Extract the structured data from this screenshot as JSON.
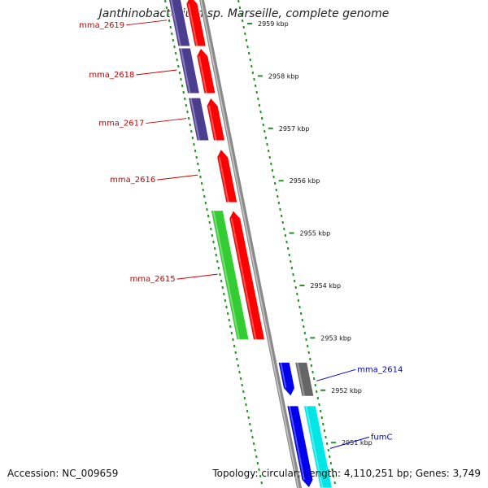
{
  "title": "Janthinobacterium sp. Marseille, complete genome",
  "footer": {
    "accession": "Accession: NC_009659",
    "summary": "Topology: circular; Length: 4,110,251 bp; Genes: 3,749"
  },
  "colors": {
    "backbone": "#8a8a8a",
    "ticks": "#2e8b2e",
    "label_red": "#cc0000",
    "label_blue": "#0000cc"
  },
  "ticks": [
    {
      "kbp": 2959,
      "label": "2959 kbp"
    },
    {
      "kbp": 2958,
      "label": "2958 kbp"
    },
    {
      "kbp": 2957,
      "label": "2957 kbp"
    },
    {
      "kbp": 2956,
      "label": "2956 kbp"
    },
    {
      "kbp": 2955,
      "label": "2955 kbp"
    },
    {
      "kbp": 2954,
      "label": "2954 kbp"
    },
    {
      "kbp": 2953,
      "label": "2953 kbp"
    },
    {
      "kbp": 2952,
      "label": "2952 kbp"
    },
    {
      "kbp": 2951,
      "label": "2951 kbp"
    }
  ],
  "genes": [
    {
      "name": "mma_2619",
      "start_kbp": 2959.55,
      "end_kbp": 2958.58,
      "strand": "forward",
      "cog_color": "#4b3d8f",
      "label_color": "#cc0000"
    },
    {
      "name": "mma_2618",
      "start_kbp": 2958.55,
      "end_kbp": 2957.68,
      "strand": "forward",
      "cog_color": "#4b3d8f",
      "label_color": "#cc0000"
    },
    {
      "name": "mma_2617",
      "start_kbp": 2957.6,
      "end_kbp": 2956.78,
      "strand": "forward",
      "cog_color": "#4b3d8f",
      "label_color": "#cc0000"
    },
    {
      "name": "mma_2616",
      "start_kbp": 2956.62,
      "end_kbp": 2955.6,
      "strand": "forward",
      "cog_color": null,
      "label_color": "#cc0000"
    },
    {
      "name": "mma_2615",
      "start_kbp": 2955.45,
      "end_kbp": 2952.98,
      "strand": "forward",
      "cog_color": "#33cc33",
      "label_color": "#cc0000"
    },
    {
      "name": "mma_2614",
      "start_kbp": 2952.55,
      "end_kbp": 2951.9,
      "strand": "reverse",
      "cog_color": "#666666",
      "label_color": "#0000cc"
    },
    {
      "name": "fumC",
      "start_kbp": 2951.72,
      "end_kbp": 2950.15,
      "strand": "reverse",
      "cog_color": "#00e5e5",
      "label_color": "#0000cc"
    }
  ]
}
